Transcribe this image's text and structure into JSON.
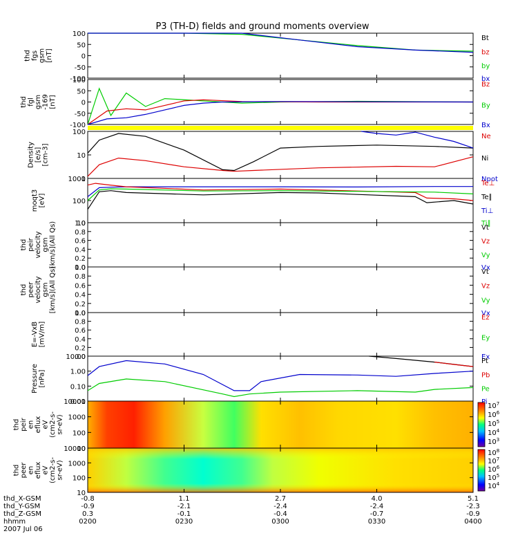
{
  "title": "P3 (TH-D) fields and ground moments overview",
  "chart_data": {
    "type": "multi-panel line and spectrogram",
    "x_tick_labels": [
      "0200",
      "0230",
      "0300",
      "0330",
      "0400"
    ],
    "ephemeris": {
      "labels": [
        "thd_X-GSM",
        "thd_Y-GSM",
        "thd_Z-GSM",
        "hhmm",
        "2007 Jul 06"
      ],
      "rows": [
        [
          "-0.8",
          "1.1",
          "2.7",
          "4.0",
          "5.1"
        ],
        [
          "-0.9",
          "-2.1",
          "-2.4",
          "-2.4",
          "-2.3"
        ],
        [
          "0.3",
          "-0.1",
          "-0.4",
          "-0.7",
          "-0.9"
        ]
      ]
    },
    "panels": [
      {
        "id": "fgs",
        "ylabel": [
          "thd",
          "fgs",
          "gsm",
          "[nT]"
        ],
        "yticks": [
          "100",
          "50",
          "0",
          "-50",
          "-100"
        ],
        "ylim": [
          -100,
          100
        ],
        "legend": [
          {
            "text": "Bt",
            "color": "#000000"
          },
          {
            "text": "bz",
            "color": "#dd0000"
          },
          {
            "text": "by",
            "color": "#00cc00"
          },
          {
            "text": "bx",
            "color": "#0000cc"
          }
        ]
      },
      {
        "id": "fgl",
        "ylabel": [
          "thd",
          "fgl",
          "gsm",
          "-169",
          "[nT]"
        ],
        "yticks": [
          "100",
          "50",
          "0",
          "-50",
          "-100"
        ],
        "ylim": [
          -100,
          100
        ],
        "legend": [
          {
            "text": "Bz",
            "color": "#dd0000"
          },
          {
            "text": "By",
            "color": "#00cc00"
          },
          {
            "text": "Bx",
            "color": "#0000cc"
          }
        ]
      },
      {
        "id": "density",
        "ylabel": [
          "Density",
          "[e/s]",
          "[cm-3]"
        ],
        "yticks": [
          "100",
          "10",
          "1"
        ],
        "ylim": [
          0.3,
          200
        ],
        "log": true,
        "legend": [
          {
            "text": "Ne",
            "color": "#dd0000"
          },
          {
            "text": "Ni",
            "color": "#000000"
          },
          {
            "text": "Npot",
            "color": "#0000cc"
          }
        ]
      },
      {
        "id": "temperature",
        "ylabel": [
          "moqt3",
          "[eV]"
        ],
        "yticks": [
          "1000",
          "100",
          "10"
        ],
        "ylim": [
          10,
          1000
        ],
        "log": true,
        "legend": [
          {
            "text": "Te⊥",
            "color": "#dd0000"
          },
          {
            "text": "Te∥",
            "color": "#000000"
          },
          {
            "text": "Ti⊥",
            "color": "#0000cc"
          },
          {
            "text": "Ti∥",
            "color": "#00cc00"
          }
        ]
      },
      {
        "id": "peir_velocity",
        "ylabel": [
          "thd",
          "peir",
          "velocity",
          "gsm",
          "[km/s](All Qs)"
        ],
        "yticks": [
          "1.0",
          "0.8",
          "0.6",
          "0.4",
          "0.2",
          "0.0"
        ],
        "ylim": [
          0,
          1
        ],
        "legend": [
          {
            "text": "Vt",
            "color": "#000000"
          },
          {
            "text": "Vz",
            "color": "#dd0000"
          },
          {
            "text": "Vy",
            "color": "#00cc00"
          },
          {
            "text": "Vx",
            "color": "#0000cc"
          }
        ]
      },
      {
        "id": "peer_velocity",
        "ylabel": [
          "thd",
          "peer",
          "velocity",
          "gsm",
          "[km/s](All Qs)"
        ],
        "yticks": [
          "1.0",
          "0.8",
          "0.6",
          "0.4",
          "0.2",
          "0.0"
        ],
        "ylim": [
          0,
          1
        ],
        "legend": [
          {
            "text": "Vt",
            "color": "#000000"
          },
          {
            "text": "Vz",
            "color": "#dd0000"
          },
          {
            "text": "Vy",
            "color": "#00cc00"
          },
          {
            "text": "Vx",
            "color": "#0000cc"
          }
        ]
      },
      {
        "id": "efield",
        "ylabel": [
          "E=-VxB",
          "[mV/m]"
        ],
        "yticks": [
          "1.0",
          "0.8",
          "0.6",
          "0.4",
          "0.2",
          "0.0"
        ],
        "ylim": [
          0,
          1
        ],
        "legend": [
          {
            "text": "Ez",
            "color": "#dd0000"
          },
          {
            "text": "Ey",
            "color": "#00cc00"
          },
          {
            "text": "Ex",
            "color": "#0000cc"
          }
        ]
      },
      {
        "id": "pressure",
        "ylabel": [
          "Pressure",
          "[nPa]"
        ],
        "yticks": [
          "10.00",
          "1.00",
          "0.10",
          "0.01"
        ],
        "ylim": [
          0.01,
          10
        ],
        "log": true,
        "legend": [
          {
            "text": "Pt",
            "color": "#000000"
          },
          {
            "text": "Pb",
            "color": "#dd0000"
          },
          {
            "text": "Pe",
            "color": "#00cc00"
          },
          {
            "text": "Pi",
            "color": "#0000cc"
          }
        ]
      },
      {
        "id": "peir_spec",
        "ylabel": [
          "thd",
          "peir",
          "en",
          "eflux",
          "eV",
          "(cm2-s-",
          "sr-eV)"
        ],
        "yticks": [
          "10000",
          "1000",
          "100",
          "10"
        ],
        "colorbar_labels": [
          "10^7",
          "10^6",
          "10^5",
          "10^4",
          "10^3"
        ],
        "spectrogram": true
      },
      {
        "id": "peer_spec",
        "ylabel": [
          "thd",
          "peer",
          "en",
          "eflux",
          "eV",
          "(cm2-s-",
          "sr-eV)"
        ],
        "yticks": [
          "10000",
          "1000",
          "100",
          "10"
        ],
        "colorbar_labels": [
          "10^8",
          "10^7",
          "10^6",
          "10^5",
          "10^4"
        ],
        "spectrogram": true
      }
    ],
    "series": [
      {
        "panel": "fgs",
        "color": "#00cc00",
        "x": [
          0.0,
          0.12,
          0.25,
          0.4,
          0.55,
          0.7,
          0.85,
          1.0
        ],
        "y": [
          100,
          100,
          100,
          95,
          70,
          45,
          25,
          20
        ]
      },
      {
        "panel": "fgs",
        "color": "#0000cc",
        "x": [
          0.0,
          0.25,
          0.4,
          0.55,
          0.7,
          0.85,
          1.0
        ],
        "y": [
          100,
          100,
          100,
          70,
          40,
          25,
          15
        ]
      },
      {
        "panel": "fgl",
        "color": "#00cc00",
        "x": [
          0.0,
          0.03,
          0.06,
          0.1,
          0.15,
          0.2,
          0.3,
          0.4,
          0.5,
          0.7,
          1.0
        ],
        "y": [
          -100,
          60,
          -60,
          40,
          -20,
          15,
          5,
          -5,
          0,
          3,
          0
        ]
      },
      {
        "panel": "fgl",
        "color": "#dd0000",
        "x": [
          0.0,
          0.05,
          0.1,
          0.15,
          0.2,
          0.25,
          0.3,
          0.4,
          0.6,
          1.0
        ],
        "y": [
          -100,
          -40,
          -30,
          -35,
          -15,
          5,
          10,
          2,
          0,
          0
        ]
      },
      {
        "panel": "fgl",
        "color": "#0000cc",
        "x": [
          0.0,
          0.05,
          0.1,
          0.15,
          0.2,
          0.25,
          0.3,
          0.35,
          0.5,
          1.0
        ],
        "y": [
          -100,
          -75,
          -70,
          -55,
          -35,
          -15,
          -5,
          0,
          2,
          0
        ]
      },
      {
        "panel": "density",
        "color": "#000000",
        "x": [
          0.0,
          0.03,
          0.08,
          0.15,
          0.25,
          0.35,
          0.38,
          0.43,
          0.5,
          0.6,
          0.75,
          0.9,
          1.0
        ],
        "y": [
          10,
          60,
          150,
          100,
          15,
          1,
          0.9,
          3,
          20,
          25,
          30,
          25,
          20
        ]
      },
      {
        "panel": "density",
        "color": "#dd0000",
        "x": [
          0.0,
          0.03,
          0.08,
          0.15,
          0.25,
          0.35,
          0.38,
          0.43,
          0.6,
          0.8,
          0.9,
          1.0
        ],
        "y": [
          0.4,
          2,
          5,
          3.5,
          1.5,
          0.9,
          0.8,
          0.9,
          1.3,
          1.6,
          1.5,
          6
        ]
      },
      {
        "panel": "density",
        "color": "#0000cc",
        "x": [
          0.71,
          0.75,
          0.8,
          0.85,
          0.9,
          0.95,
          1.0
        ],
        "y": [
          200,
          150,
          120,
          180,
          90,
          50,
          20
        ]
      },
      {
        "panel": "temperature",
        "color": "#0000cc",
        "x": [
          0.0,
          0.03,
          0.06,
          0.1,
          0.3,
          0.5,
          0.7,
          0.9,
          1.0
        ],
        "y": [
          150,
          380,
          400,
          420,
          420,
          420,
          410,
          430,
          430
        ]
      },
      {
        "panel": "temperature",
        "color": "#dd0000",
        "x": [
          0.0,
          0.02,
          0.05,
          0.1,
          0.3,
          0.5,
          0.6,
          0.85,
          0.88,
          0.95,
          1.0
        ],
        "y": [
          500,
          600,
          520,
          420,
          300,
          330,
          300,
          230,
          130,
          120,
          100
        ]
      },
      {
        "panel": "temperature",
        "color": "#00cc00",
        "x": [
          0.0,
          0.03,
          0.06,
          0.1,
          0.3,
          0.5,
          0.7,
          0.9,
          1.0
        ],
        "y": [
          100,
          300,
          340,
          330,
          270,
          280,
          260,
          240,
          200
        ]
      },
      {
        "panel": "temperature",
        "color": "#000000",
        "x": [
          0.0,
          0.03,
          0.06,
          0.1,
          0.3,
          0.5,
          0.6,
          0.85,
          0.88,
          0.95,
          1.0
        ],
        "y": [
          40,
          250,
          280,
          230,
          180,
          230,
          220,
          150,
          80,
          100,
          70
        ]
      },
      {
        "panel": "pressure",
        "color": "#0000cc",
        "x": [
          0.0,
          0.03,
          0.1,
          0.2,
          0.3,
          0.38,
          0.42,
          0.45,
          0.55,
          0.7,
          0.8,
          0.9,
          1.0
        ],
        "y": [
          0.5,
          2.0,
          5.0,
          3.0,
          0.6,
          0.05,
          0.05,
          0.2,
          0.6,
          0.55,
          0.45,
          0.7,
          1.0
        ]
      },
      {
        "panel": "pressure",
        "color": "#00cc00",
        "x": [
          0.0,
          0.03,
          0.1,
          0.2,
          0.35,
          0.38,
          0.42,
          0.5,
          0.7,
          0.85,
          0.9,
          1.0
        ],
        "y": [
          0.05,
          0.15,
          0.3,
          0.2,
          0.03,
          0.02,
          0.03,
          0.04,
          0.05,
          0.04,
          0.06,
          0.08
        ]
      },
      {
        "panel": "pressure",
        "color": "#000000",
        "x": [
          0.73,
          0.8,
          0.9,
          1.0
        ],
        "y": [
          10,
          7,
          4,
          2
        ]
      },
      {
        "panel": "pressure",
        "color": "#dd0000",
        "x": [
          0.9,
          0.95,
          1.0
        ],
        "y": [
          4,
          2.8,
          2
        ]
      }
    ]
  }
}
